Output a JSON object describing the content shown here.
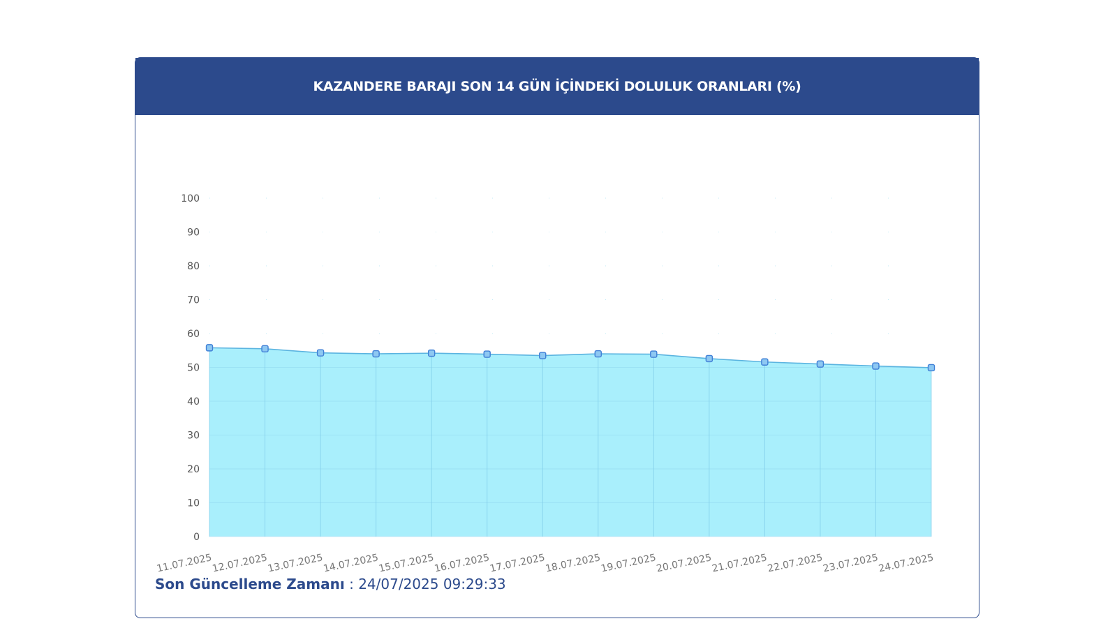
{
  "card": {
    "title": "KAZANDERE BARAJI SON 14 GÜN İÇİNDEKİ DOLULUK ORANLARI (%)"
  },
  "footer": {
    "label": "Son Güncelleme Zamanı",
    "separator": " : ",
    "value": "24/07/2025 09:29:33"
  },
  "colors": {
    "header": "#2c4a8c",
    "area": "#a9effc",
    "line": "#5bb4e0",
    "marker": "#3f7fd6"
  },
  "chart_data": {
    "type": "area",
    "categories": [
      "11.07.2025",
      "12.07.2025",
      "13.07.2025",
      "14.07.2025",
      "15.07.2025",
      "16.07.2025",
      "17.07.2025",
      "18.07.2025",
      "19.07.2025",
      "20.07.2025",
      "21.07.2025",
      "22.07.2025",
      "23.07.2025",
      "24.07.2025"
    ],
    "values": [
      55.8,
      55.5,
      54.3,
      54.0,
      54.2,
      53.9,
      53.5,
      54.0,
      53.9,
      52.6,
      51.6,
      51.0,
      50.4,
      49.9
    ],
    "yticks": [
      0,
      10,
      20,
      30,
      40,
      50,
      60,
      70,
      80,
      90,
      100
    ],
    "ylim": [
      0,
      100
    ],
    "grid": true,
    "legend": "none",
    "title": "",
    "xlabel": "",
    "ylabel": ""
  }
}
